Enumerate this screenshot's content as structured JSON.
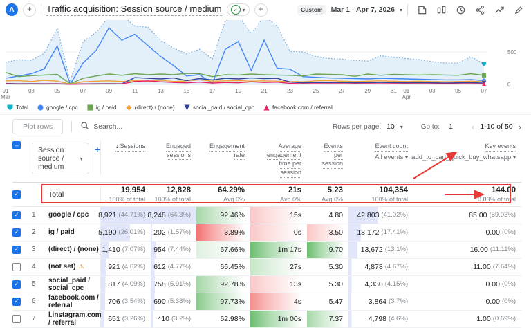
{
  "topbar": {
    "avatar": "A",
    "plus": "+",
    "title": "Traffic acquisition: Session source / medium",
    "check": "✓",
    "caret": "▾",
    "date_chip": "Custom",
    "date_range": "Mar 1 - Apr 7, 2026"
  },
  "icons": {
    "warning": "⚠",
    "search": "⌕",
    "sort_desc": "↓",
    "chev_left": "‹",
    "chev_right": "›"
  },
  "colors": {
    "accent_blue": "#1A73E8",
    "annotation_red": "#E53935",
    "bar_lavender": "#E1E6FA",
    "heat_green": "76,175,80",
    "heat_red": "239,83,80"
  },
  "chart_data": {
    "type": "line",
    "title": "Sessions by session source / medium over time",
    "ylim": [
      0,
      1000
    ],
    "right_axis_ticks": [
      {
        "v": 500,
        "t": "500"
      },
      {
        "v": 0,
        "t": "0"
      }
    ],
    "x_ticks": [
      {
        "i": 0,
        "t": "01",
        "sub": "Mar"
      },
      {
        "i": 2,
        "t": "03"
      },
      {
        "i": 4,
        "t": "05"
      },
      {
        "i": 6,
        "t": "07"
      },
      {
        "i": 8,
        "t": "09"
      },
      {
        "i": 10,
        "t": "11"
      },
      {
        "i": 12,
        "t": "13"
      },
      {
        "i": 14,
        "t": "15"
      },
      {
        "i": 16,
        "t": "17"
      },
      {
        "i": 18,
        "t": "19"
      },
      {
        "i": 20,
        "t": "21"
      },
      {
        "i": 22,
        "t": "23"
      },
      {
        "i": 24,
        "t": "25"
      },
      {
        "i": 26,
        "t": "27"
      },
      {
        "i": 28,
        "t": "29"
      },
      {
        "i": 30,
        "t": "31"
      },
      {
        "i": 31,
        "t": "01",
        "sub": "Apr"
      },
      {
        "i": 33,
        "t": "03"
      },
      {
        "i": 35,
        "t": "05"
      },
      {
        "i": 37,
        "t": "07"
      }
    ],
    "series": [
      {
        "name": "Total",
        "marker": "pin",
        "color": "#12B5CB",
        "line_color": "#72A9DC",
        "style": "dotted-area",
        "fill": "#DCEBF8",
        "values": [
          340,
          380,
          370,
          480,
          860,
          50,
          660,
          800,
          1040,
          1060,
          900,
          880,
          680,
          560,
          470,
          540,
          390,
          980,
          1060,
          780,
          1050,
          900,
          510,
          500,
          430,
          400,
          390,
          370,
          360,
          440,
          420,
          400,
          380,
          350,
          330,
          330,
          430,
          310
        ]
      },
      {
        "name": "google / cpc",
        "marker": "circle",
        "color": "#4285F4",
        "line_color": "#4285F4",
        "style": "solid",
        "values": [
          95,
          130,
          165,
          240,
          590,
          5,
          330,
          520,
          870,
          680,
          770,
          600,
          430,
          290,
          130,
          150,
          15,
          540,
          660,
          215,
          680,
          250,
          235,
          120,
          110,
          100,
          95,
          90,
          85,
          95,
          90,
          85,
          80,
          75,
          70,
          70,
          75,
          60
        ]
      },
      {
        "name": "ig / paid",
        "marker": "square",
        "color": "#68A74F",
        "line_color": "#68A74F",
        "style": "solid",
        "values": [
          185,
          120,
          135,
          145,
          155,
          8,
          95,
          130,
          160,
          140,
          165,
          150,
          160,
          150,
          170,
          165,
          120,
          150,
          145,
          160,
          150,
          145,
          140,
          130,
          160,
          155,
          150,
          125,
          160,
          140,
          155,
          150,
          145,
          150,
          145,
          140,
          165,
          140
        ]
      },
      {
        "name": "(direct) / (none)",
        "marker": "diamond",
        "color": "#F0A13C",
        "line_color": "#F0A13C",
        "style": "solid",
        "values": [
          55,
          60,
          45,
          65,
          50,
          5,
          40,
          50,
          55,
          45,
          60,
          50,
          65,
          45,
          55,
          70,
          50,
          55,
          60,
          50,
          55,
          50,
          45,
          40,
          55,
          60,
          50,
          45,
          50,
          55,
          50,
          45,
          50,
          45,
          40,
          45,
          50,
          40
        ]
      },
      {
        "name": "social_paid / social_cpc",
        "marker": "triangle-down",
        "color": "#32439B",
        "line_color": "#32439B",
        "style": "solid",
        "values": [
          15,
          10,
          12,
          10,
          12,
          3,
          8,
          10,
          12,
          10,
          105,
          95,
          85,
          100,
          60,
          90,
          70,
          95,
          85,
          100,
          90,
          95,
          35,
          25,
          30,
          28,
          30,
          25,
          28,
          30,
          28,
          25,
          28,
          25,
          22,
          25,
          28,
          20
        ]
      },
      {
        "name": "facebook.com / referral",
        "marker": "triangle-up",
        "color": "#E91E63",
        "line_color": "#E91E63",
        "style": "solid",
        "values": [
          8,
          6,
          7,
          6,
          8,
          2,
          5,
          6,
          8,
          7,
          45,
          55,
          40,
          30,
          25,
          35,
          20,
          30,
          25,
          40,
          30,
          35,
          15,
          10,
          12,
          10,
          12,
          10,
          12,
          10,
          12,
          10,
          10,
          8,
          8,
          8,
          10,
          6
        ]
      }
    ]
  },
  "controls": {
    "plot_rows": "Plot rows",
    "search_placeholder": "Search...",
    "rows_per_page_label": "Rows per page:",
    "rows_per_page_value": "10",
    "goto_label": "Go to:",
    "goto_value": "1",
    "range_label": "1-10 of 50"
  },
  "table": {
    "dimension": "Session source / medium",
    "add_dimension": "+",
    "columns": [
      {
        "lines": [
          "Sessions"
        ],
        "sort": true
      },
      {
        "lines": [
          "Engaged",
          "sessions"
        ]
      },
      {
        "lines": [
          "Engagement",
          "rate"
        ]
      },
      {
        "lines": [
          "Average",
          "engagement",
          "time per",
          "session"
        ]
      },
      {
        "lines": [
          "Events",
          "per",
          "session"
        ]
      },
      {
        "lines": [
          "Event count"
        ],
        "sub": "All events"
      },
      {
        "lines": [
          "Key events"
        ],
        "sub": "add_to_cart_quick_buy_whatsapp"
      }
    ],
    "totals": {
      "label": "Total",
      "cells": [
        {
          "v": "19,954",
          "s": "100% of total"
        },
        {
          "v": "12,828",
          "s": "100% of total"
        },
        {
          "v": "64.29%",
          "s": "Avg 0%"
        },
        {
          "v": "21s",
          "s": "Avg 0%"
        },
        {
          "v": "5.23",
          "s": "Avg 0%"
        },
        {
          "v": "104,354",
          "s": "100% of total"
        },
        {
          "v": "144.00",
          "s": "0.83% of total"
        }
      ]
    },
    "rows": [
      {
        "num": "1",
        "name": "google / cpc",
        "checked": true,
        "cells": [
          {
            "v": "8,921",
            "s": "(44.71%)",
            "bar": 100
          },
          {
            "v": "8,248",
            "s": "(64.3%)",
            "bar": 100
          },
          {
            "v": "92.46%",
            "heat": "g3"
          },
          {
            "v": "15s",
            "heat": "r2"
          },
          {
            "v": "4.80"
          },
          {
            "v": "42,803",
            "s": "(41.02%)",
            "bar": 45
          },
          {
            "v": "85.00",
            "s": "(59.03%)"
          }
        ]
      },
      {
        "num": "2",
        "name": "ig / paid",
        "checked": true,
        "cells": [
          {
            "v": "5,190",
            "s": "(26.01%)",
            "bar": 58
          },
          {
            "v": "202",
            "s": "(1.57%)",
            "bar": 3
          },
          {
            "v": "3.89%",
            "heat": "r5"
          },
          {
            "v": "0s",
            "heat": "r2"
          },
          {
            "v": "3.50",
            "heat": "r2"
          },
          {
            "v": "18,172",
            "s": "(17.41%)",
            "bar": 19
          },
          {
            "v": "0.00",
            "s": "(0%)"
          }
        ]
      },
      {
        "num": "3",
        "name": "(direct) / (none)",
        "checked": true,
        "cells": [
          {
            "v": "1,410",
            "s": "(7.07%)",
            "bar": 16
          },
          {
            "v": "954",
            "s": "(7.44%)",
            "bar": 12
          },
          {
            "v": "67.66%",
            "heat": "g1"
          },
          {
            "v": "1m 17s",
            "heat": "g5"
          },
          {
            "v": "9.70",
            "heat": "g5"
          },
          {
            "v": "13,672",
            "s": "(13.1%)",
            "bar": 14
          },
          {
            "v": "16.00",
            "s": "(11.11%)"
          }
        ]
      },
      {
        "num": "4",
        "name": "(not set)",
        "warn": true,
        "checked": false,
        "cells": [
          {
            "v": "921",
            "s": "(4.62%)",
            "bar": 10
          },
          {
            "v": "612",
            "s": "(4.77%)",
            "bar": 8
          },
          {
            "v": "66.45%"
          },
          {
            "v": "27s",
            "heat": "g2"
          },
          {
            "v": "5.30"
          },
          {
            "v": "4,878",
            "s": "(4.67%)",
            "bar": 5
          },
          {
            "v": "11.00",
            "s": "(7.64%)"
          }
        ]
      },
      {
        "num": "5",
        "name": "social_paid / social_cpc",
        "checked": true,
        "cells": [
          {
            "v": "817",
            "s": "(4.09%)",
            "bar": 9
          },
          {
            "v": "758",
            "s": "(5.91%)",
            "bar": 9
          },
          {
            "v": "92.78%",
            "heat": "g3"
          },
          {
            "v": "13s",
            "heat": "r2"
          },
          {
            "v": "5.30"
          },
          {
            "v": "4,330",
            "s": "(4.15%)",
            "bar": 5
          },
          {
            "v": "0.00",
            "s": "(0%)"
          }
        ]
      },
      {
        "num": "6",
        "name": "facebook.com / referral",
        "checked": true,
        "cells": [
          {
            "v": "706",
            "s": "(3.54%)",
            "bar": 8
          },
          {
            "v": "690",
            "s": "(5.38%)",
            "bar": 8
          },
          {
            "v": "97.73%",
            "heat": "g4"
          },
          {
            "v": "4s",
            "heat": "r4"
          },
          {
            "v": "5.47"
          },
          {
            "v": "3,864",
            "s": "(3.7%)",
            "bar": 4
          },
          {
            "v": "0.00",
            "s": "(0%)"
          }
        ]
      },
      {
        "num": "7",
        "name": "l.instagram.com / referral",
        "checked": false,
        "cells": [
          {
            "v": "651",
            "s": "(3.26%)",
            "bar": 7
          },
          {
            "v": "410",
            "s": "(3.2%)",
            "bar": 6
          },
          {
            "v": "62.98%"
          },
          {
            "v": "1m 00s",
            "heat": "g5"
          },
          {
            "v": "7.37",
            "heat": "g3"
          },
          {
            "v": "4,798",
            "s": "(4.6%)",
            "bar": 5
          },
          {
            "v": "1.00",
            "s": "(0.69%)"
          }
        ]
      }
    ]
  }
}
